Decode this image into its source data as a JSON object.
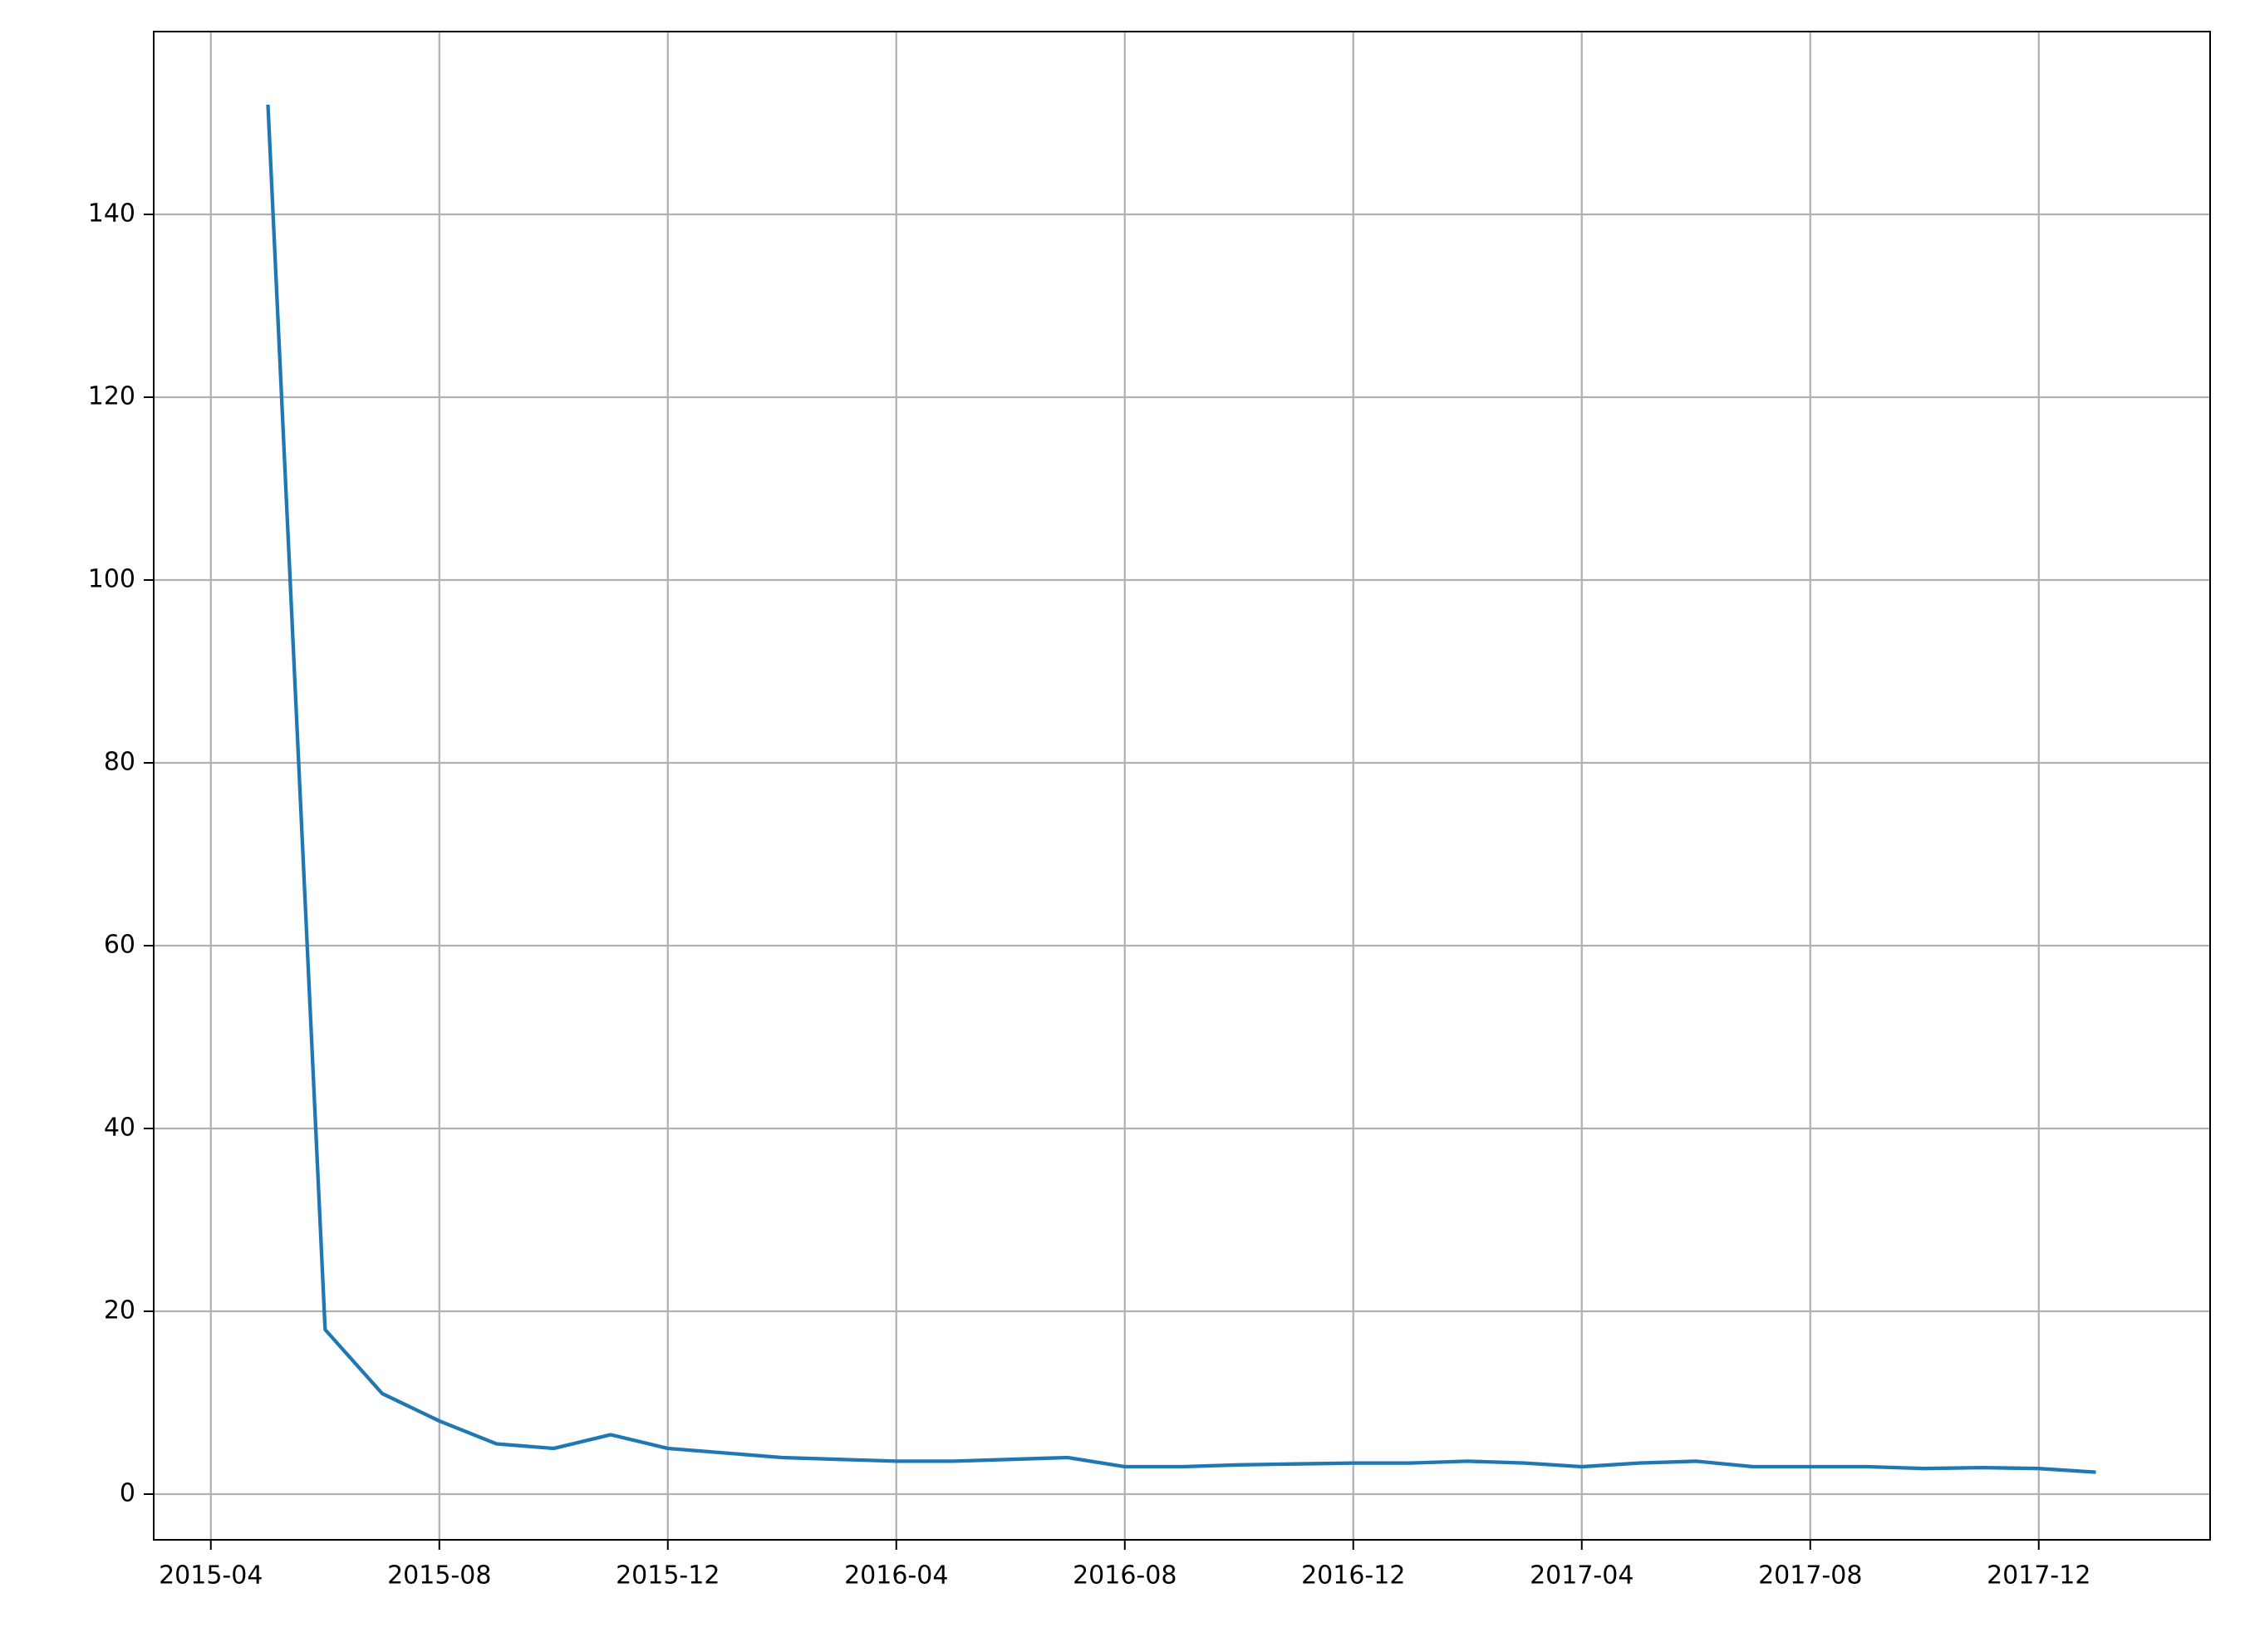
{
  "chart_data": {
    "type": "line",
    "x": [
      "2015-05",
      "2015-06",
      "2015-07",
      "2015-08",
      "2015-09",
      "2015-10",
      "2015-11",
      "2015-12",
      "2016-01",
      "2016-02",
      "2016-03",
      "2016-04",
      "2016-05",
      "2016-06",
      "2016-07",
      "2016-08",
      "2016-09",
      "2016-10",
      "2016-11",
      "2016-12",
      "2017-01",
      "2017-02",
      "2017-03",
      "2017-04",
      "2017-05",
      "2017-06",
      "2017-07",
      "2017-08",
      "2017-09",
      "2017-10",
      "2017-11",
      "2017-12",
      "2018-01"
    ],
    "values": [
      152,
      18,
      11,
      8,
      5.5,
      5,
      6.5,
      5,
      4.5,
      4,
      3.8,
      3.6,
      3.6,
      3.8,
      4,
      3,
      3,
      3.2,
      3.3,
      3.4,
      3.4,
      3.6,
      3.4,
      3,
      3.4,
      3.6,
      3,
      3,
      3,
      2.8,
      2.9,
      2.8,
      2.4
    ],
    "color": "#1f77b4",
    "xlim": [
      "2015-03",
      "2018-03"
    ],
    "xticks": [
      "2015-04",
      "2015-08",
      "2015-12",
      "2016-04",
      "2016-08",
      "2016-12",
      "2017-04",
      "2017-08",
      "2017-12"
    ],
    "ylim": [
      -5,
      160
    ],
    "yticks": [
      0,
      20,
      40,
      60,
      80,
      100,
      120,
      140
    ],
    "grid": true
  }
}
